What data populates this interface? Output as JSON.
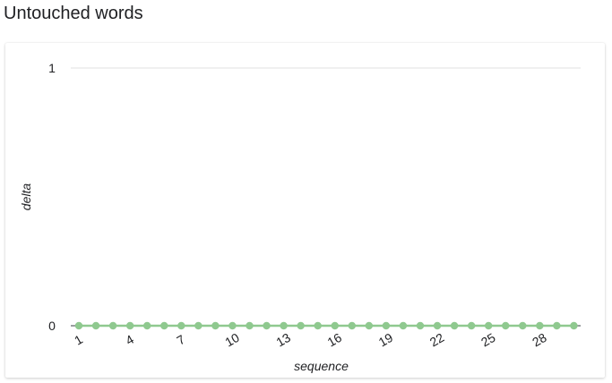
{
  "page": {
    "title": "Untouched words"
  },
  "chart_data": {
    "type": "line",
    "title": "",
    "xlabel": "sequence",
    "ylabel": "delta",
    "x": [
      1,
      2,
      3,
      4,
      5,
      6,
      7,
      8,
      9,
      10,
      11,
      12,
      13,
      14,
      15,
      16,
      17,
      18,
      19,
      20,
      21,
      22,
      23,
      24,
      25,
      26,
      27,
      28,
      29,
      30
    ],
    "x_tick_labels": [
      "1",
      "4",
      "7",
      "10",
      "13",
      "16",
      "19",
      "22",
      "25",
      "28"
    ],
    "y_tick_labels": [
      "0",
      "1"
    ],
    "ylim": [
      0,
      1
    ],
    "series": [
      {
        "values": [
          0,
          0,
          0,
          0,
          0,
          0,
          0,
          0,
          0,
          0,
          0,
          0,
          0,
          0,
          0,
          0,
          0,
          0,
          0,
          0,
          0,
          0,
          0,
          0,
          0,
          0,
          0,
          0,
          0,
          0
        ]
      }
    ],
    "colors": {
      "series": "#8fc98f",
      "gridline": "#e0e0e0",
      "axis": "#5f6368"
    },
    "grid": true,
    "legend": "none"
  }
}
